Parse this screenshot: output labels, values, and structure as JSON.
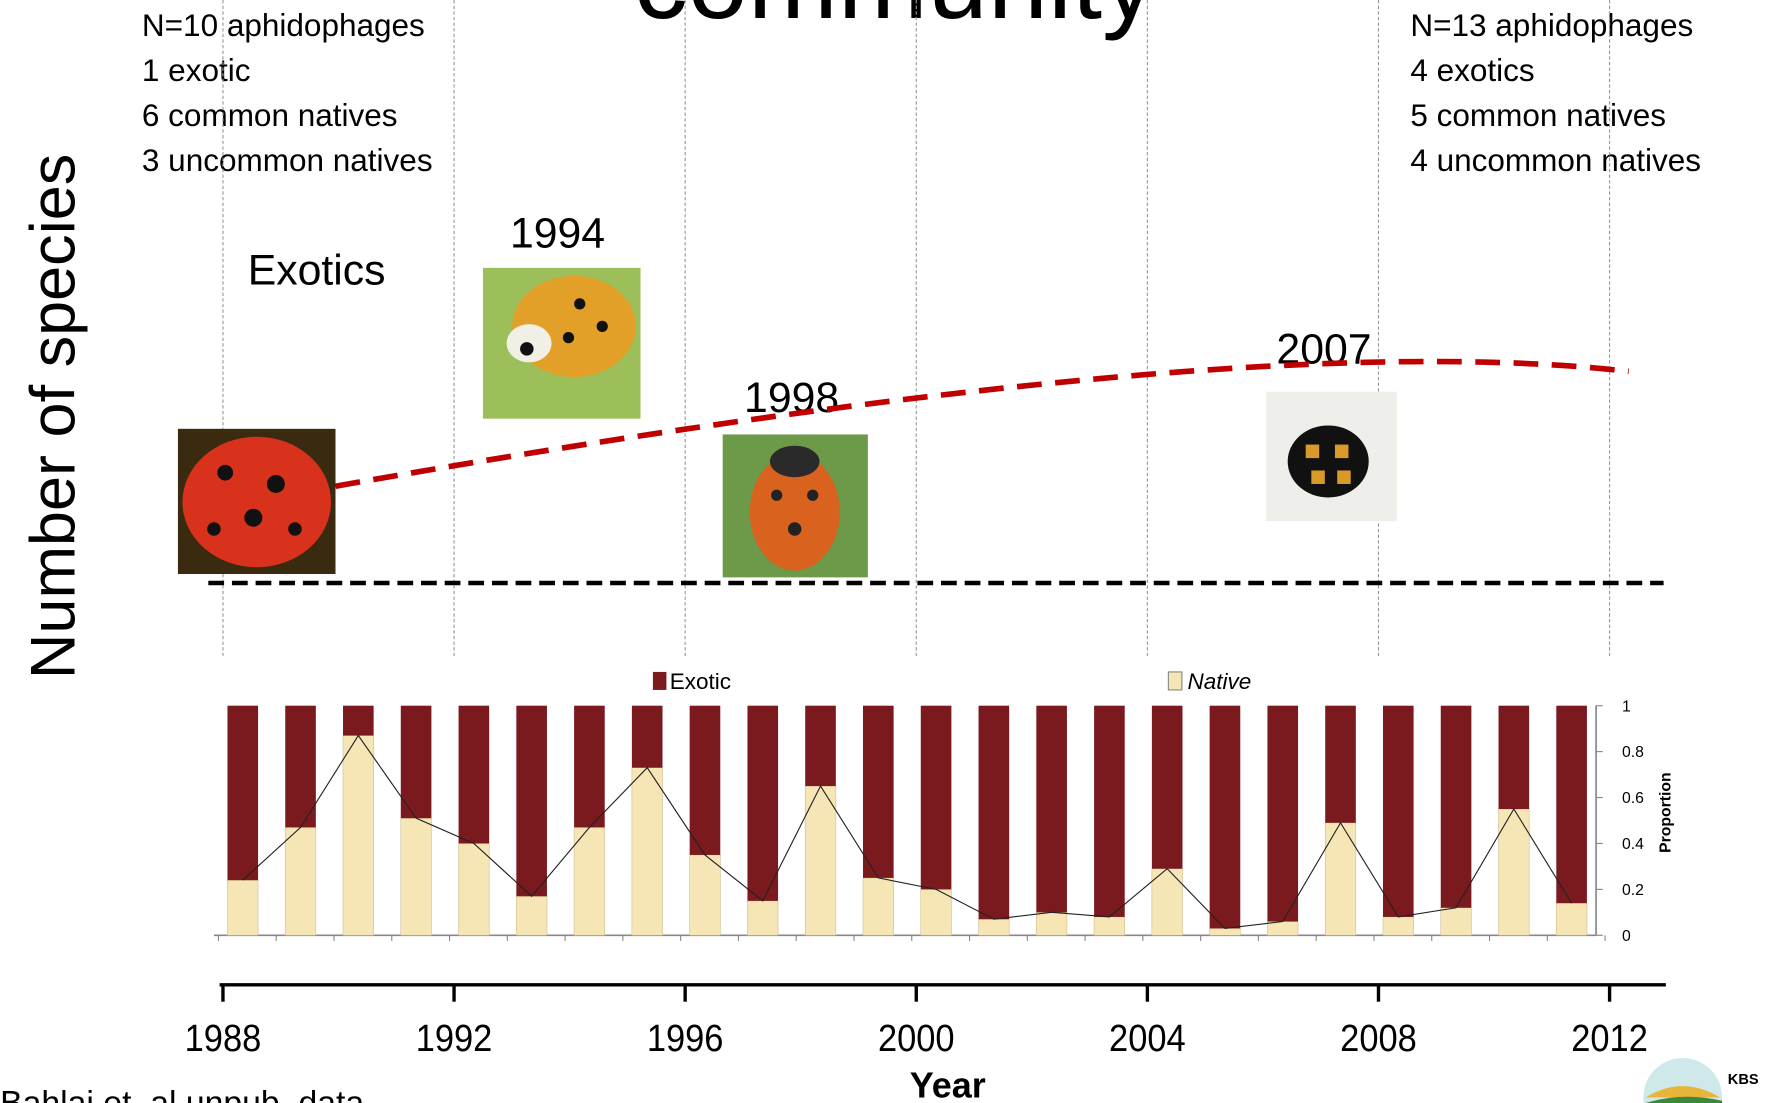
{
  "slide": {
    "stats_left": [
      "N=10 aphidophages",
      "1 exotic",
      "6 common natives",
      "3 uncommon natives"
    ],
    "stats_right": [
      "N=13 aphidophages",
      "4 exotics",
      "5 common natives",
      "4 uncommon natives"
    ],
    "exotics_label": "Exotics",
    "photo_years": [
      "1994",
      "1998",
      "2007"
    ],
    "source": "Bahlai et. al unpub. data",
    "logo": "KBS",
    "timeline": {
      "xlim": [
        1988,
        2012
      ],
      "xticks": [
        1988,
        1992,
        1996,
        2000,
        2004,
        2008,
        2012
      ]
    }
  },
  "chart_data": {
    "type": "bar",
    "title": "community",
    "ylabel": "Number of species",
    "xlabel": "Year",
    "y2label": "Proportion",
    "stacked": true,
    "ylim": [
      0,
      1
    ],
    "yticks": [
      0,
      0.2,
      0.4,
      0.6,
      0.8,
      1
    ],
    "series": [
      {
        "name": "Native",
        "color": "#f7e6b5",
        "values": [
          0.24,
          0.47,
          0.87,
          0.51,
          0.4,
          0.17,
          0.47,
          0.73,
          0.35,
          0.15,
          0.65,
          0.25,
          0.2,
          0.07,
          0.1,
          0.08,
          0.29,
          0.03,
          0.06,
          0.49,
          0.08,
          0.12,
          0.55,
          0.14
        ]
      },
      {
        "name": "Exotic",
        "color": "#7b1a1e",
        "values": [
          0.76,
          0.53,
          0.13,
          0.49,
          0.6,
          0.83,
          0.53,
          0.27,
          0.65,
          0.85,
          0.35,
          0.75,
          0.8,
          0.93,
          0.9,
          0.92,
          0.71,
          0.97,
          0.94,
          0.51,
          0.92,
          0.88,
          0.45,
          0.86
        ]
      }
    ]
  }
}
